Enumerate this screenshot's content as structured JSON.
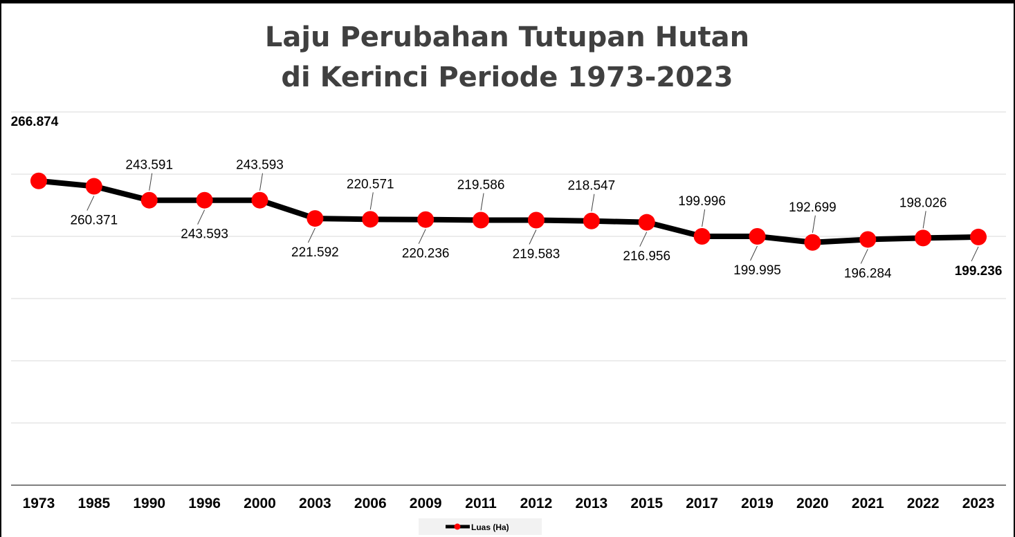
{
  "chart_data": {
    "type": "line",
    "title": [
      "Laju Perubahan Tutupan Hutan",
      "di Kerinci Periode 1973-2023"
    ],
    "categories": [
      "1973",
      "1985",
      "1990",
      "1996",
      "2000",
      "2003",
      "2006",
      "2009",
      "2011",
      "2012",
      "2013",
      "2015",
      "2017",
      "2019",
      "2020",
      "2021",
      "2022",
      "2023"
    ],
    "series": [
      {
        "name": "Luas (Ha)",
        "color": "#000000",
        "marker_color": "#ff0000",
        "values": [
          266874,
          260371,
          243591,
          243593,
          243593,
          221592,
          220571,
          220236,
          219586,
          219583,
          218547,
          216956,
          199996,
          199995,
          192699,
          196284,
          198026,
          199236
        ],
        "labels": [
          "266.874",
          "260.371",
          "243.591",
          "243.593",
          "243.593",
          "221.592",
          "220.571",
          "220.236",
          "219.586",
          "219.583",
          "218.547",
          "216.956",
          "199.996",
          "199.995",
          "192.699",
          "196.284",
          "198.026",
          "199.236"
        ],
        "label_pos": [
          "above",
          "below",
          "above",
          "below",
          "above",
          "below",
          "above",
          "below",
          "above",
          "below",
          "above",
          "below",
          "above",
          "below",
          "above",
          "below",
          "above",
          "below"
        ],
        "label_bold": [
          true,
          false,
          false,
          false,
          false,
          false,
          false,
          false,
          false,
          false,
          false,
          false,
          false,
          false,
          false,
          false,
          false,
          true
        ]
      }
    ],
    "ylim": [
      -100000,
      350000
    ],
    "y_axis_visible": false,
    "grid": true,
    "legend": "bottom"
  }
}
